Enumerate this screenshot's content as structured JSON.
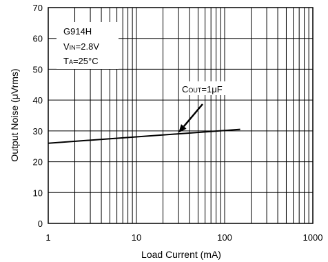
{
  "chart_data": {
    "type": "line",
    "title": "",
    "xlabel": "Load Current (mA)",
    "ylabel": "Output Noise (μVrms)",
    "xscale": "log",
    "xlim": [
      1,
      1000
    ],
    "ylim": [
      0,
      70
    ],
    "grid": true,
    "x_ticks": [
      1,
      10,
      100,
      1000
    ],
    "x_tick_labels": [
      "1",
      "10",
      "100",
      "1000"
    ],
    "y_ticks": [
      0,
      10,
      20,
      30,
      40,
      50,
      60,
      70
    ],
    "y_tick_labels": [
      "0",
      "10",
      "20",
      "30",
      "40",
      "50",
      "60",
      "70"
    ],
    "series": [
      {
        "name": "COUT=1μF",
        "color": "#000000",
        "x": [
          1,
          150
        ],
        "y": [
          26,
          30.5
        ]
      }
    ],
    "conditions": {
      "device": "G914H",
      "vin": {
        "main": "V",
        "sub": "IN",
        "rest": "=2.8V"
      },
      "ta": {
        "main": "T",
        "sub": "A",
        "rest": "=25°C"
      }
    },
    "series_label": {
      "main": "C",
      "sub": "OUT",
      "rest": "=1μF",
      "arrow_to": [
        30,
        29.4
      ]
    }
  }
}
